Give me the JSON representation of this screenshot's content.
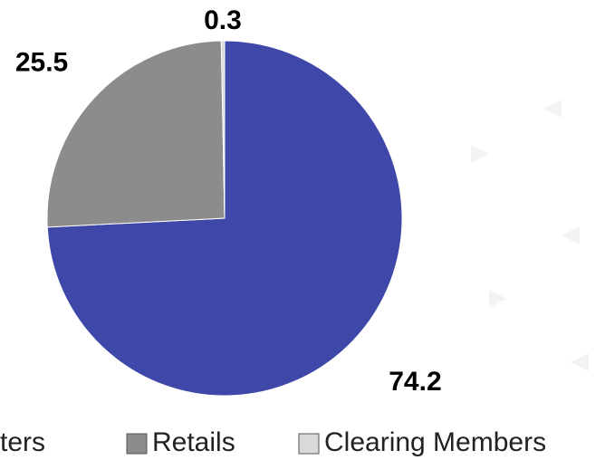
{
  "chart_data": {
    "type": "pie",
    "categories": [
      "ters",
      "Retails",
      "Clearing Members"
    ],
    "values": [
      74.2,
      25.5,
      0.3
    ],
    "colors": [
      "#3f48a8",
      "#8c8c8c",
      "#d9d9d9"
    ],
    "legend": "bottom"
  }
}
